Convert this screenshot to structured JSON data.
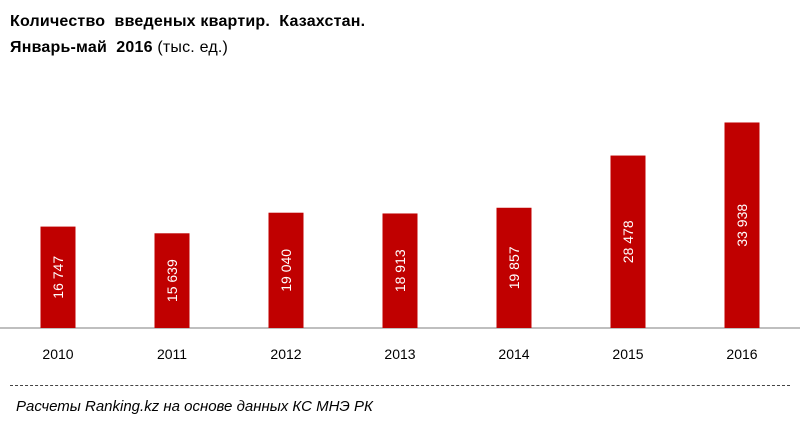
{
  "title_line1": "Количество  введеных квартир.  Казахстан.",
  "title_line2_main": "Январь-май  2016",
  "title_line2_unit": "(тыс. ед.)",
  "source": "Расчеты Ranking.kz на основе данных КС МНЭ РК",
  "colors": {
    "bar": "#c00000",
    "bar_label": "#ffffff",
    "axis": "#7f7f7f"
  },
  "chart_data": {
    "type": "bar",
    "title": "Количество  введеных квартир.  Казахстан. Январь-май  2016 (тыс. ед.)",
    "categories": [
      "2010",
      "2011",
      "2012",
      "2013",
      "2014",
      "2015",
      "2016"
    ],
    "values": [
      16747,
      15639,
      19040,
      18913,
      19857,
      28478,
      33938
    ],
    "value_labels": [
      "16 747",
      "15 639",
      "19 040",
      "18 913",
      "19 857",
      "28 478",
      "33 938"
    ],
    "xlabel": "",
    "ylabel": "",
    "ylim": [
      0,
      36000
    ],
    "grid": false,
    "legend": "none"
  }
}
